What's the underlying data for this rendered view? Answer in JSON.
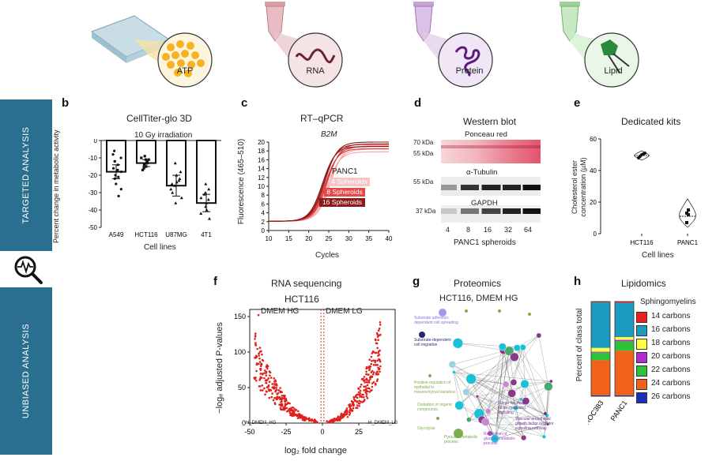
{
  "icons": [
    {
      "label": "ATP"
    },
    {
      "label": "RNA"
    },
    {
      "label": "Protein"
    },
    {
      "label": "Lipid"
    }
  ],
  "sidebar": {
    "top": "TARGETED ANALYSIS",
    "bottom": "UNBIASED ANALYSIS"
  },
  "panels": {
    "b": {
      "letter": "b",
      "title": "CellTiter-glo 3D",
      "subtitle": "10 Gy irradiation",
      "ylabel": "Percent change in metabolic activity",
      "xlabel": "Cell lines"
    },
    "c": {
      "letter": "c",
      "title": "RT–qPCR",
      "gene": "B2M",
      "ylabel": "Fluorescence (465–510)",
      "xlabel": "Cycles",
      "cell_line": "PANC1",
      "legend": [
        "4 Spheroids",
        "8 Spheroids",
        "16 Spheroids"
      ]
    },
    "d": {
      "letter": "d",
      "title": "Western blot",
      "ponceau": "Ponceau red",
      "tubulin": "α-Tubulin",
      "gapdh": "GAPDH",
      "kda": [
        "70 kDa",
        "55 kDa",
        "55 kDa",
        "37 kDa"
      ],
      "lanes": [
        "4",
        "8",
        "16",
        "32",
        "64"
      ],
      "xlabel": "PANC1 spheroids"
    },
    "e": {
      "letter": "e",
      "title": "Dedicated kits",
      "ylabel": "Cholesterol ester concentration (µM)",
      "xlabel": "Cell lines"
    },
    "f": {
      "letter": "f",
      "title": "RNA sequencing",
      "subtitle": "HCT116",
      "left_cond": "DMEM HG",
      "right_cond": "DMEM LG",
      "ylabel": "−logₑ adjusted P-values",
      "xlabel": "log₂ fold change",
      "corner_left": "H_DMEM_HG",
      "corner_right": "H_DMEM_LG"
    },
    "g": {
      "letter": "g",
      "title": "Proteomics",
      "subtitle": "HCT116, DMEM HG",
      "nodes": [
        "Substrate adhesion-dependent cell spreading",
        "Substrate-dependent cell migration",
        "Positive regulation of epithelial to mesenchymal transition",
        "Glycolysis",
        "Pyruvate metabolic process",
        "Regulation of glucose metabolic process",
        "Oxidation of organic compounds",
        "Vascular endothelial growth factor receptor signaling pathway",
        "Tumor necrosis factor-mediated signaling"
      ]
    },
    "h": {
      "letter": "h",
      "title": "Lipidomics",
      "ylabel": "Percent of class total",
      "legend_title": "Sphingomyelins"
    }
  },
  "chart_data": [
    {
      "id": "b",
      "type": "bar",
      "title": "CellTiter-glo 3D",
      "categories": [
        "A549",
        "HCT116",
        "U87MG",
        "4T1"
      ],
      "values": [
        -18,
        -13,
        -26,
        -36
      ],
      "errors": [
        4,
        2,
        6,
        5
      ],
      "points": [
        [
          -6,
          -8,
          -10,
          -12,
          -14,
          -16,
          -18,
          -20,
          -22,
          -25,
          -28,
          -32,
          -12,
          -17,
          -21
        ],
        [
          -9,
          -10,
          -11,
          -12,
          -13,
          -14,
          -15,
          -16,
          -17,
          -11,
          -13
        ],
        [
          -13,
          -18,
          -20,
          -22,
          -24,
          -26,
          -28,
          -30,
          -33,
          -36,
          -25,
          -23
        ],
        [
          -25,
          -28,
          -31,
          -33,
          -36,
          -38,
          -40,
          -42,
          -45,
          -30,
          -34
        ]
      ],
      "xlabel": "Cell lines",
      "ylabel": "Percent change in metabolic activity",
      "ylim": [
        -50,
        0
      ],
      "yticks": [
        0,
        -10,
        -20,
        -30,
        -40,
        -50
      ]
    },
    {
      "id": "c",
      "type": "line",
      "title": "RT–qPCR",
      "xlabel": "Cycles",
      "ylabel": "Fluorescence (465–510)",
      "xlim": [
        10,
        40
      ],
      "ylim": [
        0,
        20
      ],
      "xticks": [
        10,
        15,
        20,
        25,
        30,
        35,
        40
      ],
      "yticks": [
        0,
        2,
        4,
        6,
        8,
        10,
        12,
        14,
        16,
        18,
        20
      ],
      "series": [
        {
          "name": "4 Spheroids",
          "color": "#f3a5a5",
          "midpoints": [
            24.6,
            25.0,
            25.4
          ],
          "plateaus": [
            17.8,
            18.4,
            19.2
          ]
        },
        {
          "name": "8 Spheroids",
          "color": "#e03c3c",
          "midpoints": [
            24.0,
            24.3,
            24.6
          ],
          "plateaus": [
            18.5,
            19.0,
            19.6
          ]
        },
        {
          "name": "16 Spheroids",
          "color": "#8c1a1a",
          "midpoints": [
            23.4,
            23.7,
            24.0
          ],
          "plateaus": [
            19.0,
            19.5,
            20.0
          ]
        }
      ],
      "baseline": 2.1
    },
    {
      "id": "e",
      "type": "scatter",
      "title": "Dedicated kits",
      "categories": [
        "HCT116",
        "PANC1"
      ],
      "values": [
        [
          48,
          49,
          50,
          50.5,
          51
        ],
        [
          7,
          12,
          13,
          15
        ]
      ],
      "xlabel": "Cell lines",
      "ylabel": "Cholesterol ester concentration (µM)",
      "ylim": [
        0,
        60
      ],
      "yticks": [
        0,
        20,
        40,
        60
      ]
    },
    {
      "id": "f",
      "type": "scatter",
      "title": "RNA sequencing",
      "xlabel": "log₂ fold change",
      "ylabel": "−logₑ adjusted P-values",
      "xlim": [
        -50,
        50
      ],
      "ylim": [
        0,
        160
      ],
      "xticks": [
        -50,
        -25,
        0,
        25
      ],
      "yticks": [
        0,
        50,
        100,
        150
      ]
    },
    {
      "id": "h",
      "type": "bar",
      "title": "Lipidomics",
      "categories": [
        "HROC383",
        "PANC1"
      ],
      "series": [
        {
          "name": "14 carbons",
          "color": "#e8231f",
          "values": [
            1,
            1.5
          ]
        },
        {
          "name": "16 carbons",
          "color": "#1b9bbf",
          "values": [
            48,
            36
          ]
        },
        {
          "name": "18 carbons",
          "color": "#ffff44",
          "values": [
            4,
            3
          ]
        },
        {
          "name": "20 carbons",
          "color": "#b02bd0",
          "values": [
            1,
            1.5
          ]
        },
        {
          "name": "22 carbons",
          "color": "#2fc13a",
          "values": [
            8,
            10
          ]
        },
        {
          "name": "24 carbons",
          "color": "#f0611a",
          "values": [
            37,
            47
          ]
        },
        {
          "name": "26 carbons",
          "color": "#1b2fb8",
          "values": [
            1,
            1
          ]
        }
      ],
      "ylabel": "Percent of class total",
      "ylim": [
        0,
        100
      ]
    }
  ]
}
